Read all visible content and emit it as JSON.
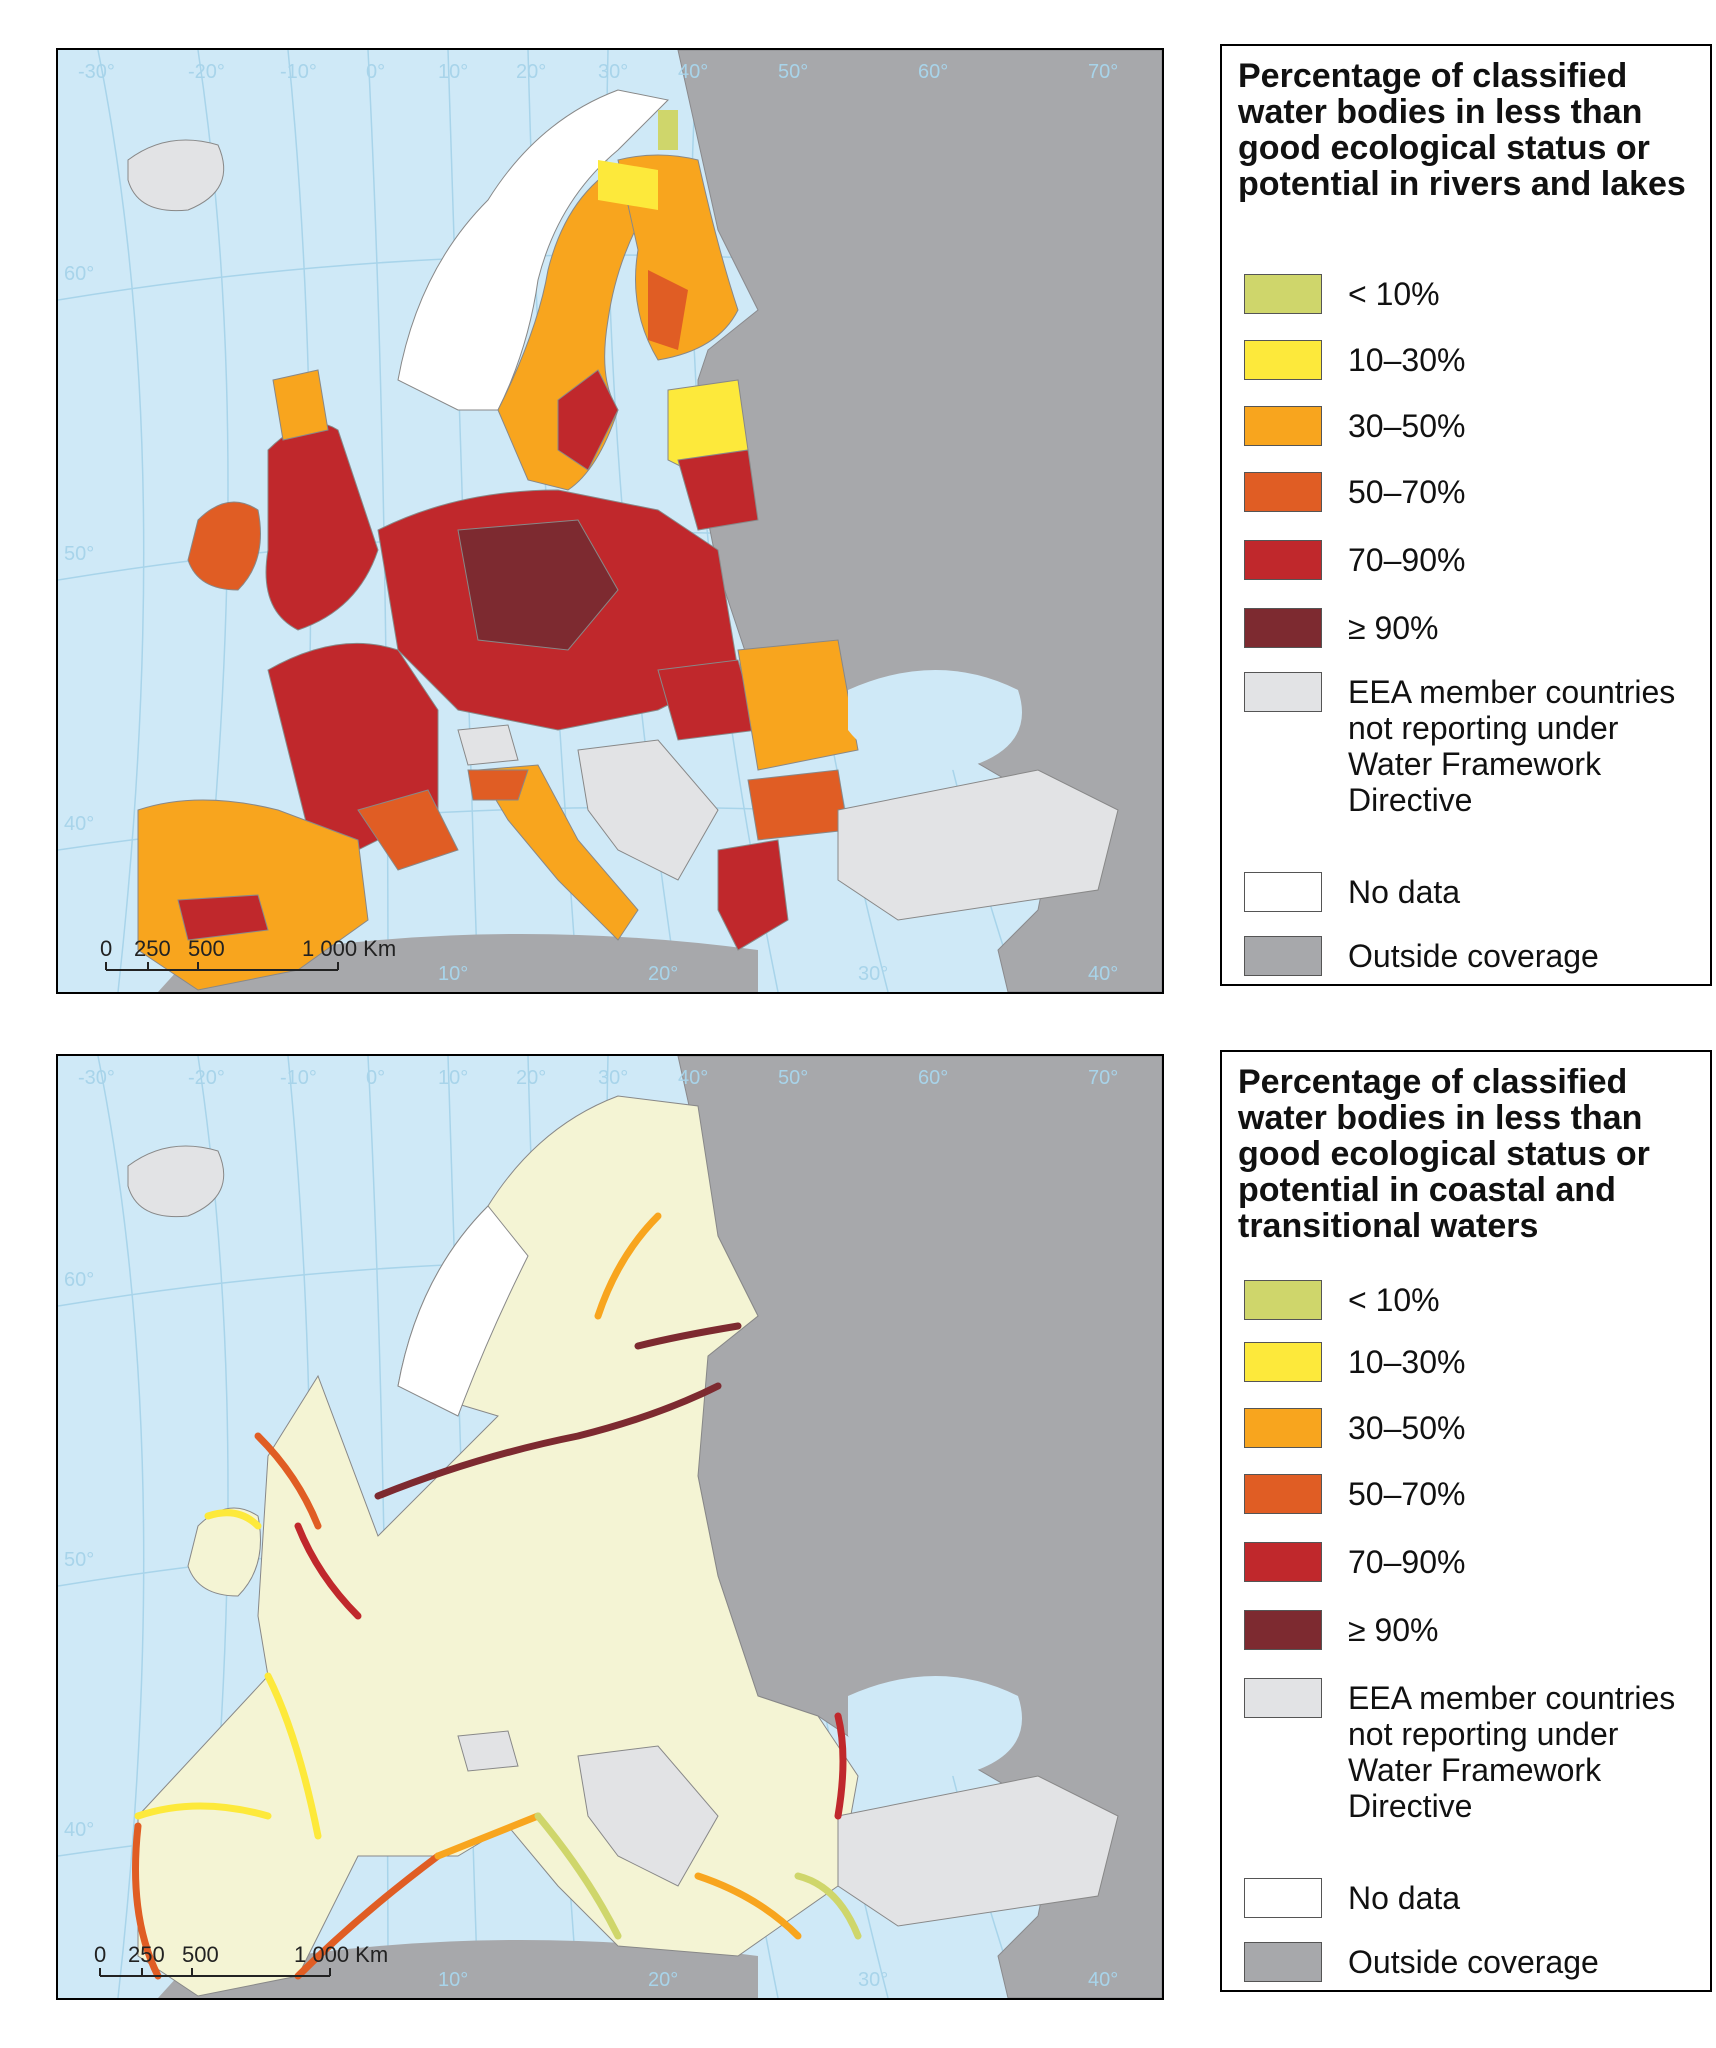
{
  "maps": [
    {
      "id": "rivers-lakes",
      "legend_title": "Percentage of classified water bodies in less than good ecological status or potential in rivers and lakes",
      "graticule_labels": [
        "-30°",
        "-20°",
        "-10°",
        "0°",
        "10°",
        "20°",
        "30°",
        "40°",
        "50°",
        "60°",
        "70°",
        "60°",
        "50°",
        "40°",
        "10°",
        "20°",
        "30°",
        "40°"
      ],
      "scale_labels": [
        "0",
        "250",
        "500",
        "1 000 Km"
      ]
    },
    {
      "id": "coastal-transitional",
      "legend_title": "Percentage of classified water bodies in less than good ecological status or potential in coastal and transitional waters",
      "graticule_labels": [
        "-30°",
        "-20°",
        "-10°",
        "0°",
        "10°",
        "20°",
        "30°",
        "40°",
        "50°",
        "60°",
        "70°",
        "60°",
        "50°",
        "40°",
        "10°",
        "20°",
        "30°",
        "40°"
      ],
      "scale_labels": [
        "0",
        "250",
        "500",
        "1 000 Km"
      ]
    }
  ],
  "legend_items": [
    {
      "label": "< 10%",
      "color": "#cfd66b"
    },
    {
      "label": "10–30%",
      "color": "#fde93b"
    },
    {
      "label": "30–50%",
      "color": "#f8a51e"
    },
    {
      "label": "50–70%",
      "color": "#e05d24"
    },
    {
      "label": "70–90%",
      "color": "#c0282c"
    },
    {
      "label": "≥ 90%",
      "color": "#7d2a30"
    },
    {
      "label": "EEA member countries not reporting under Water Framework Directive",
      "color": "#e2e3e5"
    },
    {
      "label": "No data",
      "color": "#ffffff"
    },
    {
      "label": "Outside coverage",
      "color": "#a7a8ab"
    }
  ],
  "colors": {
    "sea": "#cfe9f7",
    "outside_coverage": "#a7a8ab",
    "not_reporting": "#e2e3e5",
    "no_data": "#ffffff",
    "land_bottom_map": "#f4f4d4",
    "borders": "#888888",
    "graticule": "#a8d4ea"
  }
}
